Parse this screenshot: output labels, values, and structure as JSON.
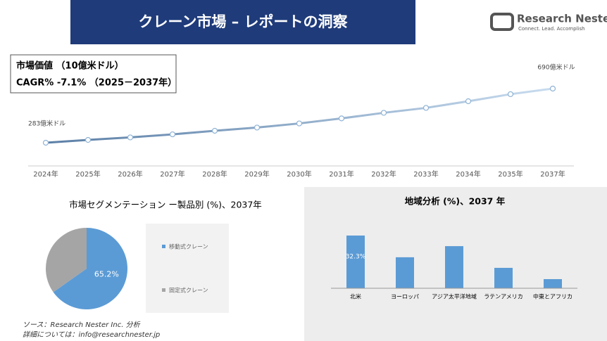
{
  "header": {
    "title": "クレーン市場 – レポートの洞察"
  },
  "logo": {
    "name": "Research Nester",
    "tagline": "Connect. Lead. Accomplish"
  },
  "info": {
    "market_value": "市場価値 （10億米ドル）",
    "cagr": "CAGR% -7.1% （2025－2037年）"
  },
  "chart_data": [
    {
      "type": "line",
      "categories": [
        "2024年",
        "2025年",
        "2026年",
        "2027年",
        "2028年",
        "2029年",
        "2030年",
        "2031年",
        "2032年",
        "2033年",
        "2034年",
        "2035年",
        "2037年"
      ],
      "values": [
        283,
        304,
        323,
        346,
        373,
        397,
        428,
        466,
        508,
        545,
        595,
        648,
        690
      ],
      "value_labels": [
        "283億米ドル",
        null,
        null,
        null,
        null,
        null,
        null,
        null,
        null,
        null,
        null,
        null,
        "690億米ドル"
      ],
      "color": "#5b86b0"
    },
    {
      "type": "pie",
      "title": "市場セグメンテーション ー製品別 (%)、2037年",
      "categories": [
        "移動式クレーン",
        "固定式クレーン"
      ],
      "values": [
        65.2,
        34.8
      ],
      "value_labels": [
        "65.2%",
        null
      ],
      "colors": [
        "#5b9bd5",
        "#a5a5a5"
      ]
    },
    {
      "type": "bar",
      "title": "地域分析 (%)、2037 年",
      "categories": [
        "北米",
        "ヨーロッパ",
        "アジア太平洋地域",
        "ラテンアメリカ",
        "中東とアフリカ"
      ],
      "values": [
        32.3,
        19.0,
        25.8,
        12.5,
        5.6
      ],
      "value_labels": [
        "32.3%",
        null,
        null,
        null,
        null
      ],
      "color": "#5b9bd5"
    }
  ],
  "source": {
    "line1": "ソース：Research Nester Inc. 分析",
    "line2": "詳細については：info@researchnester.jp"
  }
}
